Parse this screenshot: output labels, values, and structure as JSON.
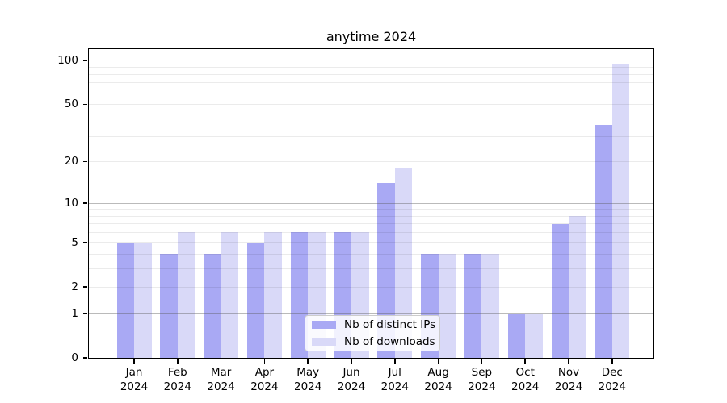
{
  "title": "anytime 2024",
  "colors": {
    "ips_bar": "#a9a9f4",
    "downloads_bar": "#d9d9f8",
    "grid_major": "#b0b0b0",
    "grid_minor": "#e8e8e8",
    "axis": "#000000"
  },
  "legend": {
    "items": [
      {
        "label": "Nb of distinct IPs",
        "series_key": "ips"
      },
      {
        "label": "Nb of downloads",
        "series_key": "downloads"
      }
    ]
  },
  "chart_data": {
    "type": "bar",
    "title": "anytime 2024",
    "categories": [
      "Jan 2024",
      "Feb 2024",
      "Mar 2024",
      "Apr 2024",
      "May 2024",
      "Jun 2024",
      "Jul 2024",
      "Aug 2024",
      "Sep 2024",
      "Oct 2024",
      "Nov 2024",
      "Dec 2024"
    ],
    "series": [
      {
        "name": "Nb of distinct IPs",
        "key": "ips",
        "values": [
          5,
          4,
          4,
          5,
          6,
          6,
          14,
          4,
          4,
          1,
          7,
          36
        ]
      },
      {
        "name": "Nb of downloads",
        "key": "downloads",
        "values": [
          5,
          6,
          6,
          6,
          6,
          6,
          18,
          4,
          4,
          1,
          8,
          95
        ]
      }
    ],
    "xlabel": "",
    "ylabel": "",
    "yscale": "log1p",
    "ylim": [
      0,
      119
    ],
    "y_tick_values": [
      0,
      1,
      2,
      5,
      10,
      20,
      50,
      100
    ],
    "y_major_gridlines": [
      1,
      10,
      100
    ],
    "y_minor_gridlines": [
      2,
      3,
      4,
      5,
      6,
      7,
      8,
      9,
      20,
      30,
      40,
      50,
      60,
      70,
      80,
      90
    ],
    "grid": true,
    "legend_position": "lower-center-inside"
  }
}
